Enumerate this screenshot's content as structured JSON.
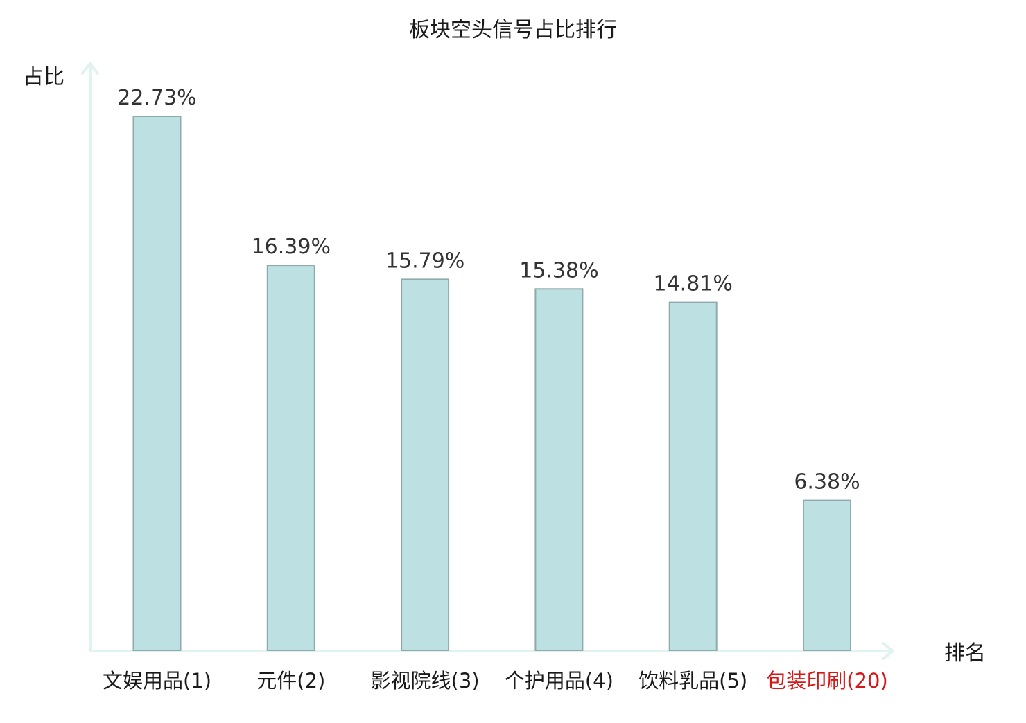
{
  "chart_data": {
    "type": "bar",
    "title": "板块空头信号占比排行",
    "xlabel": "排名",
    "ylabel": "占比",
    "categories": [
      "文娱用品(1)",
      "元件(2)",
      "影视院线(3)",
      "个护用品(4)",
      "饮料乳品(5)",
      "包装印刷(20)"
    ],
    "values": [
      22.73,
      16.39,
      15.79,
      15.38,
      14.81,
      6.38
    ],
    "value_labels": [
      "22.73%",
      "16.39%",
      "15.79%",
      "15.38%",
      "14.81%",
      "6.38%"
    ],
    "highlight_index": 5,
    "grid": false,
    "ylim": [
      0,
      25.4
    ]
  },
  "colors": {
    "bar_fill": "#bde0e3",
    "bar_stroke": "#8faaab",
    "axis": "#e1f3f1",
    "text": "#333333",
    "label_text": "#1a1a1a",
    "highlight": "#d71616"
  }
}
